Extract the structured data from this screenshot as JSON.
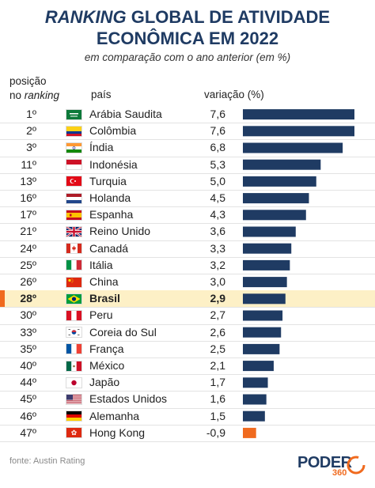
{
  "header": {
    "title_em": "RANKING",
    "title_rest": "GLOBAL DE ATIVIDADE",
    "title_line2": "ECONÔMICA EM 2022",
    "subtitle": "em comparação com o ano anterior (em %)",
    "col_rank_line1": "posição",
    "col_rank_line2a": "no ",
    "col_rank_line2b": "ranking",
    "col_country": "país",
    "col_variation": "variação (%)"
  },
  "chart_data": {
    "type": "bar",
    "orientation": "horizontal",
    "title": "RANKING GLOBAL DE ATIVIDADE ECONÔMICA EM 2022",
    "subtitle": "em comparação com o ano anterior (em %)",
    "value_label": "variação (%)",
    "xlim": [
      -0.9,
      7.6
    ],
    "highlight": "Brasil",
    "colors": {
      "bar": "#1f3b63",
      "negative_bar": "#f06a1e",
      "highlight_row": "#fdf0c6",
      "marker": "#f06a1e"
    },
    "rows": [
      {
        "rank": "1º",
        "country": "Arábia Saudita",
        "value": 7.6,
        "value_label": "7,6",
        "flag": "saudi-arabia-flag"
      },
      {
        "rank": "2º",
        "country": "Colômbia",
        "value": 7.6,
        "value_label": "7,6",
        "flag": "colombia-flag"
      },
      {
        "rank": "3º",
        "country": "Índia",
        "value": 6.8,
        "value_label": "6,8",
        "flag": "india-flag"
      },
      {
        "rank": "11º",
        "country": "Indonésia",
        "value": 5.3,
        "value_label": "5,3",
        "flag": "indonesia-flag"
      },
      {
        "rank": "13º",
        "country": "Turquia",
        "value": 5.0,
        "value_label": "5,0",
        "flag": "turkey-flag"
      },
      {
        "rank": "16º",
        "country": "Holanda",
        "value": 4.5,
        "value_label": "4,5",
        "flag": "netherlands-flag"
      },
      {
        "rank": "17º",
        "country": "Espanha",
        "value": 4.3,
        "value_label": "4,3",
        "flag": "spain-flag"
      },
      {
        "rank": "21º",
        "country": "Reino Unido",
        "value": 3.6,
        "value_label": "3,6",
        "flag": "united-kingdom-flag"
      },
      {
        "rank": "24º",
        "country": "Canadá",
        "value": 3.3,
        "value_label": "3,3",
        "flag": "canada-flag"
      },
      {
        "rank": "25º",
        "country": "Itália",
        "value": 3.2,
        "value_label": "3,2",
        "flag": "italy-flag"
      },
      {
        "rank": "26º",
        "country": "China",
        "value": 3.0,
        "value_label": "3,0",
        "flag": "china-flag"
      },
      {
        "rank": "28º",
        "country": "Brasil",
        "value": 2.9,
        "value_label": "2,9",
        "flag": "brazil-flag"
      },
      {
        "rank": "30º",
        "country": "Peru",
        "value": 2.7,
        "value_label": "2,7",
        "flag": "peru-flag"
      },
      {
        "rank": "33º",
        "country": "Coreia do Sul",
        "value": 2.6,
        "value_label": "2,6",
        "flag": "south-korea-flag"
      },
      {
        "rank": "35º",
        "country": "França",
        "value": 2.5,
        "value_label": "2,5",
        "flag": "france-flag"
      },
      {
        "rank": "40º",
        "country": "México",
        "value": 2.1,
        "value_label": "2,1",
        "flag": "mexico-flag"
      },
      {
        "rank": "44º",
        "country": "Japão",
        "value": 1.7,
        "value_label": "1,7",
        "flag": "japan-flag"
      },
      {
        "rank": "45º",
        "country": "Estados Unidos",
        "value": 1.6,
        "value_label": "1,6",
        "flag": "usa-flag"
      },
      {
        "rank": "46º",
        "country": "Alemanha",
        "value": 1.5,
        "value_label": "1,5",
        "flag": "germany-flag"
      },
      {
        "rank": "47º",
        "country": "Hong Kong",
        "value": -0.9,
        "value_label": "-0,9",
        "flag": "hong-kong-flag"
      }
    ]
  },
  "footer": {
    "source": "fonte: Austin Rating",
    "logo_name": "PODER",
    "logo_num": "360"
  }
}
